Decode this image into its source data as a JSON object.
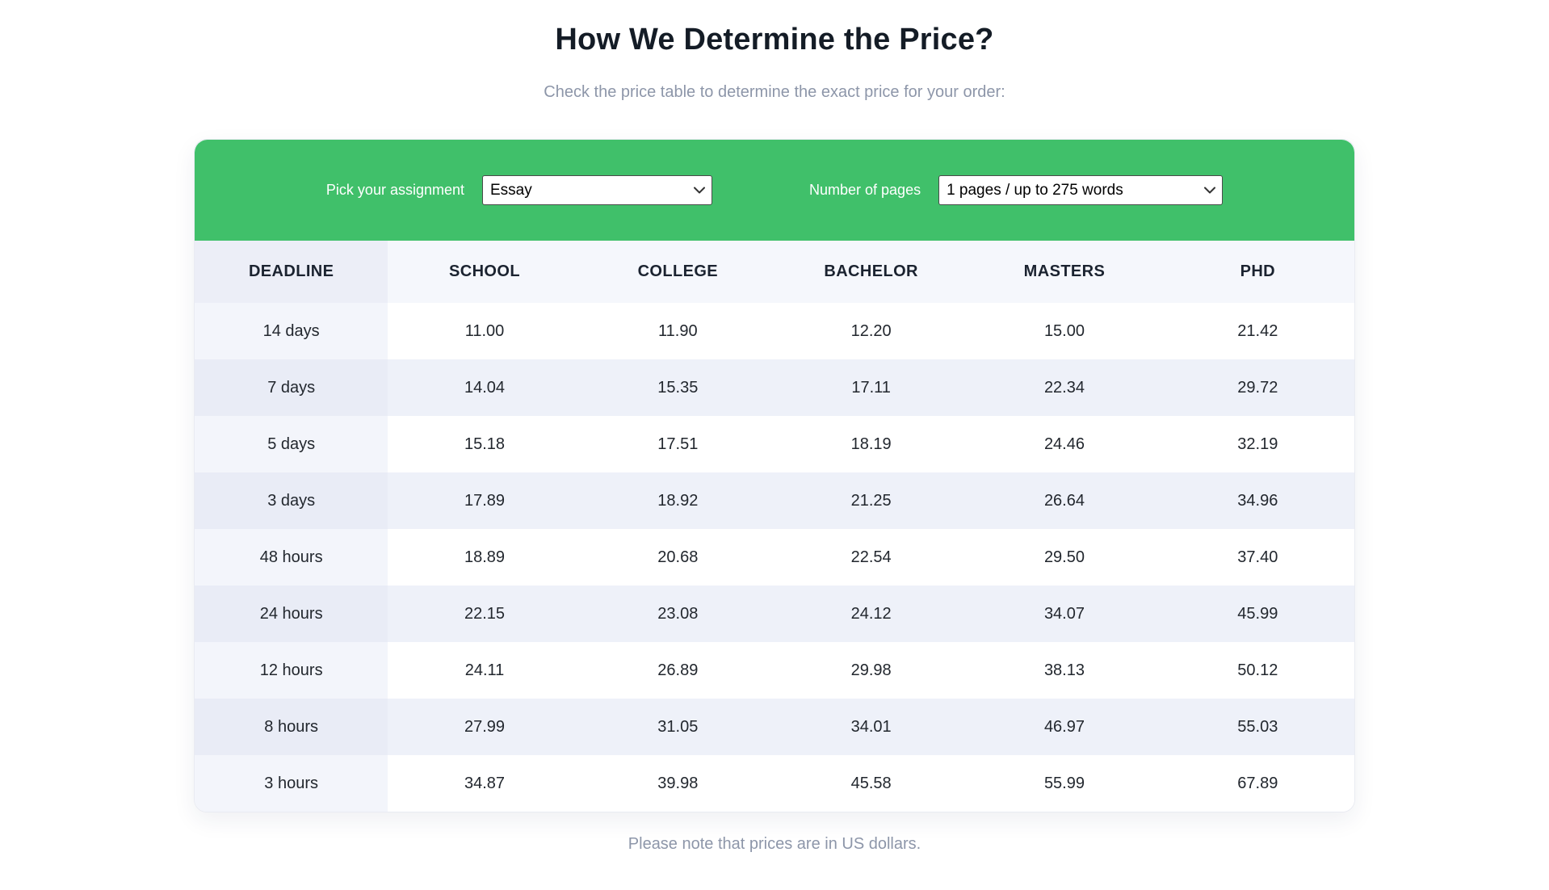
{
  "page": {
    "title": "How We Determine the Price?",
    "subtitle": "Check the price table to determine the exact price for your order:",
    "footer_note": "Please note that prices are in US dollars."
  },
  "filters": {
    "assignment_label": "Pick your assignment",
    "assignment_value": "Essay",
    "pages_label": "Number of pages",
    "pages_value": "1 pages / up to 275 words"
  },
  "colors": {
    "accent_green": "#40c06a",
    "header_row_bg": "#f5f7fc",
    "header_first_cell_bg": "#eceef7",
    "row_alt_bg": "#eef1f9",
    "first_col_tint": "#f3f5fb",
    "first_col_tint_alt": "#e9ecf6",
    "muted_text": "#8d96a9",
    "dark_text": "#141c26"
  },
  "chart_data": {
    "type": "table",
    "columns": [
      "DEADLINE",
      "SCHOOL",
      "COLLEGE",
      "BACHELOR",
      "MASTERS",
      "PHD"
    ],
    "rows": [
      [
        "14 days",
        "11.00",
        "11.90",
        "12.20",
        "15.00",
        "21.42"
      ],
      [
        "7 days",
        "14.04",
        "15.35",
        "17.11",
        "22.34",
        "29.72"
      ],
      [
        "5 days",
        "15.18",
        "17.51",
        "18.19",
        "24.46",
        "32.19"
      ],
      [
        "3 days",
        "17.89",
        "18.92",
        "21.25",
        "26.64",
        "34.96"
      ],
      [
        "48 hours",
        "18.89",
        "20.68",
        "22.54",
        "29.50",
        "37.40"
      ],
      [
        "24 hours",
        "22.15",
        "23.08",
        "24.12",
        "34.07",
        "45.99"
      ],
      [
        "12 hours",
        "24.11",
        "26.89",
        "29.98",
        "38.13",
        "50.12"
      ],
      [
        "8 hours",
        "27.99",
        "31.05",
        "34.01",
        "46.97",
        "55.03"
      ],
      [
        "3 hours",
        "34.87",
        "39.98",
        "45.58",
        "55.99",
        "67.89"
      ]
    ]
  }
}
